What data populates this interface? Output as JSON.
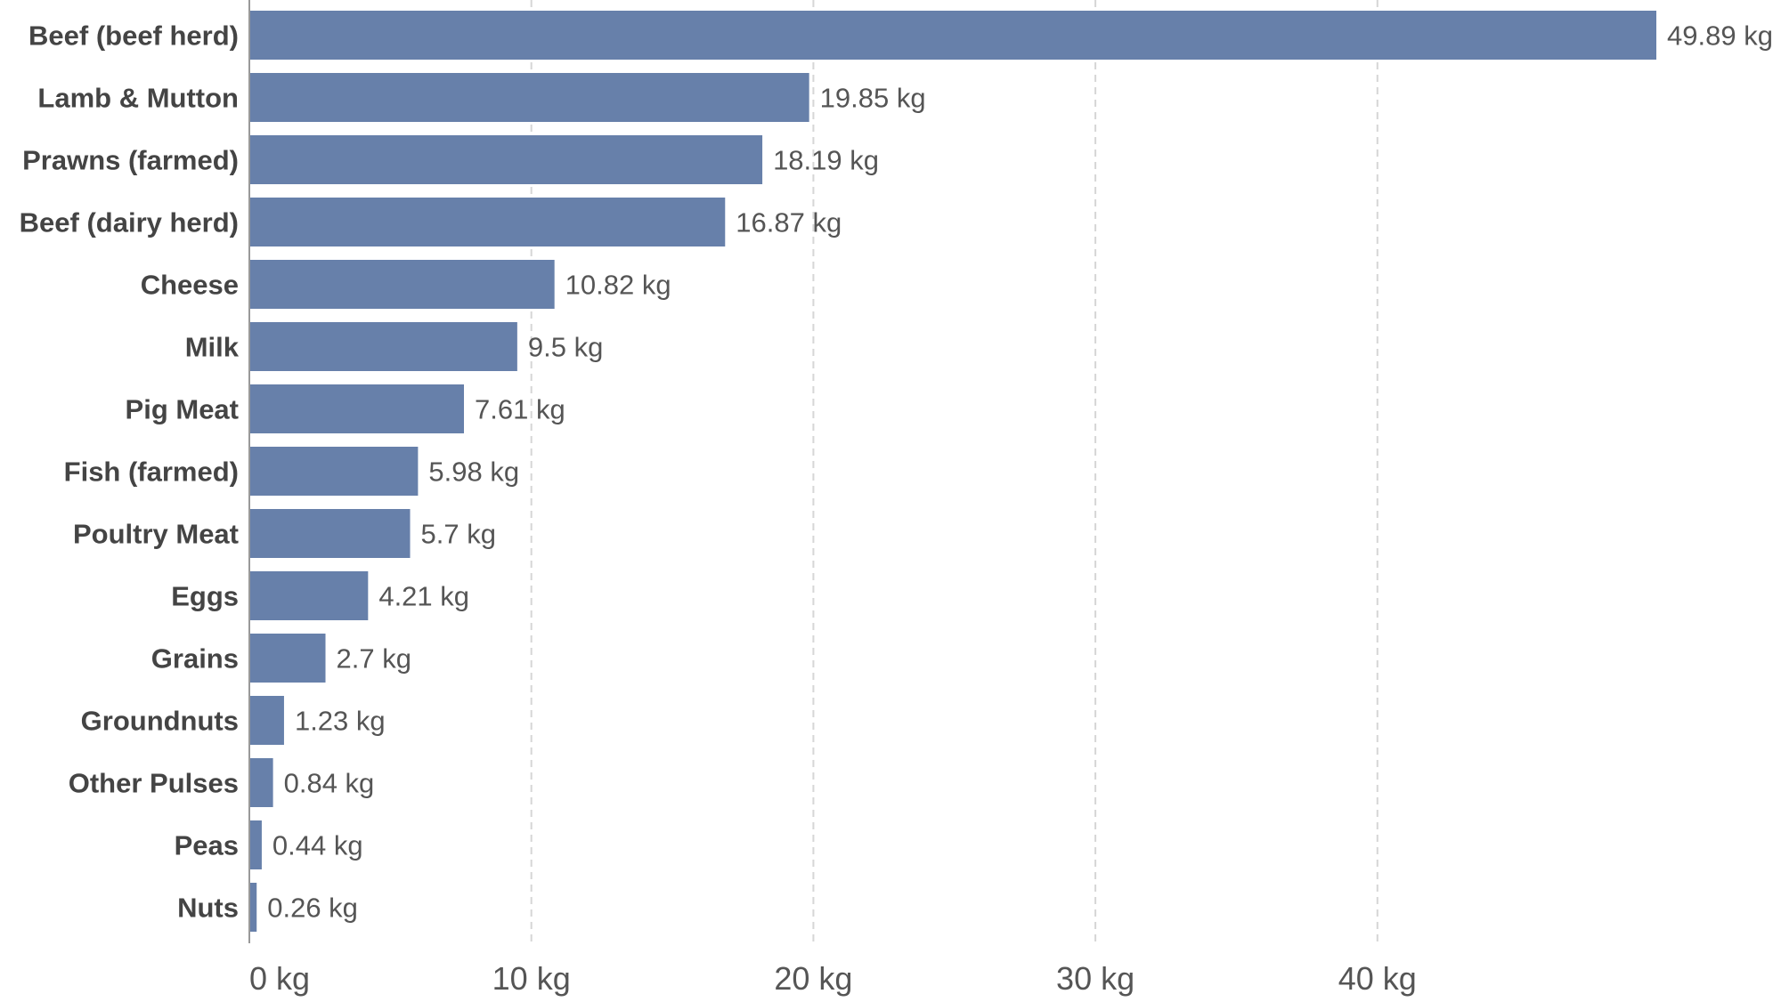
{
  "chart_data": {
    "type": "bar",
    "orientation": "horizontal",
    "title": "",
    "xlabel": "",
    "ylabel": "",
    "unit": "kg",
    "xlim": [
      0,
      53
    ],
    "grid": true,
    "legend": "none",
    "bar_color": "#6780aa",
    "categories": [
      "Beef (beef herd)",
      "Lamb & Mutton",
      "Prawns (farmed)",
      "Beef (dairy herd)",
      "Cheese",
      "Milk",
      "Pig Meat",
      "Fish (farmed)",
      "Poultry Meat",
      "Eggs",
      "Grains",
      "Groundnuts",
      "Other Pulses",
      "Peas",
      "Nuts"
    ],
    "values": [
      49.89,
      19.85,
      18.19,
      16.87,
      10.82,
      9.5,
      7.61,
      5.98,
      5.7,
      4.21,
      2.7,
      1.23,
      0.84,
      0.44,
      0.26
    ],
    "value_labels": [
      "49.89 kg",
      "19.85 kg",
      "18.19 kg",
      "16.87 kg",
      "10.82 kg",
      "9.5 kg",
      "7.61 kg",
      "5.98 kg",
      "5.7 kg",
      "4.21 kg",
      "2.7 kg",
      "1.23 kg",
      "0.84 kg",
      "0.44 kg",
      "0.26 kg"
    ],
    "ticks": [
      0,
      10,
      20,
      30,
      40
    ],
    "tick_labels": [
      "0 kg",
      "10 kg",
      "20 kg",
      "30 kg",
      "40 kg"
    ]
  }
}
